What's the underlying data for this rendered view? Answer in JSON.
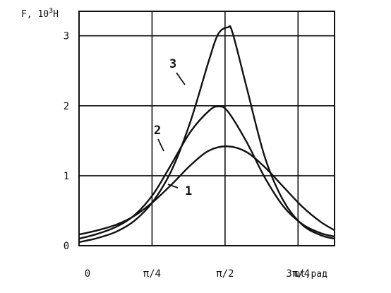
{
  "chart_data": {
    "type": "line",
    "title": "",
    "ylabel_parts": {
      "base": "F, 10",
      "exp": "3",
      "unit": "Н"
    },
    "xlabel": "ωt,рад",
    "x_ticks": [
      {
        "value": 0,
        "label": "0"
      },
      {
        "value": 0.7854,
        "label": "π/4"
      },
      {
        "value": 1.5708,
        "label": "π/2"
      },
      {
        "value": 2.3562,
        "label": "3π/4"
      }
    ],
    "y_ticks": [
      {
        "value": 0,
        "label": "0"
      },
      {
        "value": 1,
        "label": "1"
      },
      {
        "value": 2,
        "label": "2"
      },
      {
        "value": 3,
        "label": "3"
      }
    ],
    "xlim": [
      0,
      2.7489
    ],
    "ylim": [
      0,
      3.35
    ],
    "grid": true,
    "series": [
      {
        "name": "1",
        "color": "#111111",
        "x": [
          0,
          0.2,
          0.4,
          0.6,
          0.8,
          1.0,
          1.2,
          1.4,
          1.6,
          1.8,
          2.0,
          2.2,
          2.4,
          2.6,
          2.75
        ],
        "y": [
          0.16,
          0.22,
          0.3,
          0.43,
          0.63,
          0.88,
          1.15,
          1.36,
          1.42,
          1.34,
          1.12,
          0.84,
          0.56,
          0.34,
          0.22
        ]
      },
      {
        "name": "2",
        "color": "#111111",
        "x": [
          0,
          0.2,
          0.4,
          0.6,
          0.8,
          1.0,
          1.2,
          1.4,
          1.5,
          1.6,
          1.8,
          2.0,
          2.2,
          2.4,
          2.6,
          2.75
        ],
        "y": [
          0.1,
          0.17,
          0.27,
          0.44,
          0.74,
          1.18,
          1.63,
          1.93,
          1.99,
          1.92,
          1.49,
          0.97,
          0.56,
          0.31,
          0.18,
          0.13
        ]
      },
      {
        "name": "3",
        "color": "#111111",
        "x": [
          0,
          0.2,
          0.4,
          0.6,
          0.8,
          1.0,
          1.2,
          1.4,
          1.5,
          1.6,
          1.65,
          1.8,
          2.0,
          2.2,
          2.4,
          2.6,
          2.75
        ],
        "y": [
          0.05,
          0.11,
          0.2,
          0.36,
          0.64,
          1.09,
          1.78,
          2.66,
          3.03,
          3.12,
          3.05,
          2.28,
          1.26,
          0.64,
          0.3,
          0.15,
          0.1
        ]
      }
    ]
  }
}
